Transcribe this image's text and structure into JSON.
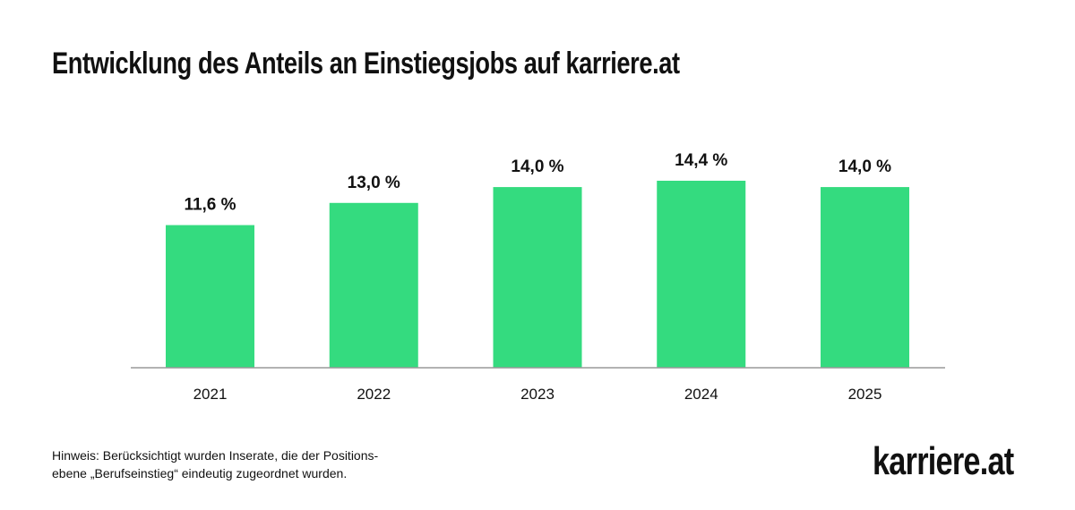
{
  "chart_data": {
    "type": "bar",
    "title": "Entwicklung des Anteils an Einstiegsjobs auf karriere.at",
    "categories": [
      "2021",
      "2022",
      "2023",
      "2024",
      "2025"
    ],
    "values": [
      11.6,
      13.0,
      14.0,
      14.4,
      14.0
    ],
    "data_labels": [
      "11,6 %",
      "13,0 %",
      "14,0 %",
      "14,4 %",
      "14,0 %"
    ],
    "xlabel": "",
    "ylabel": "",
    "ylim": [
      2.6,
      17.9
    ],
    "grid": false,
    "bar_color": "#34DB7F",
    "axis_color": "#999999"
  },
  "footnote": {
    "line1": "Hinweis: Berücksichtigt wurden Inserate, die der Positions-",
    "line2": "ebene „Berufseinstieg“ eindeutig zugeordnet wurden."
  },
  "logo": "karriere.at"
}
